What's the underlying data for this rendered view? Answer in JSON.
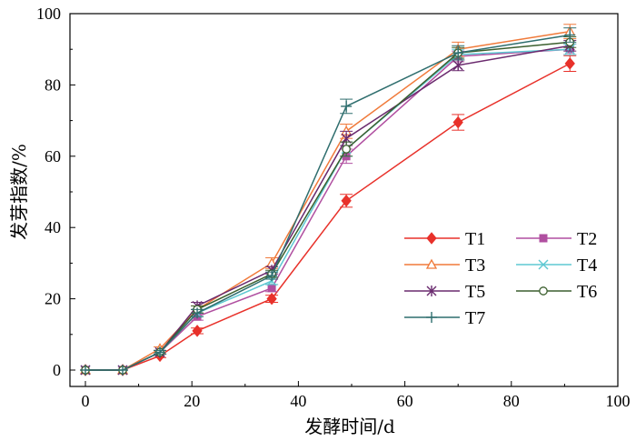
{
  "chart_data": {
    "type": "line",
    "xlabel": "发酵时间/d",
    "ylabel": "发芽指数/%",
    "xlim": [
      0,
      100
    ],
    "ylim": [
      0,
      100
    ],
    "xticks": [
      0,
      20,
      40,
      60,
      80,
      100
    ],
    "yticks": [
      0,
      20,
      40,
      60,
      80,
      100
    ],
    "xtick_labels": [
      "0",
      "20",
      "40",
      "60",
      "80",
      "100"
    ],
    "ytick_labels": [
      "0",
      "20",
      "40",
      "60",
      "80",
      "100"
    ],
    "grid": false,
    "legend_position": "center-right",
    "x": [
      0,
      7,
      14,
      21,
      35,
      49,
      70,
      91
    ],
    "series": [
      {
        "name": "T1",
        "color": "#e8312a",
        "marker": "diamond",
        "values": [
          0,
          0,
          4,
          11,
          20,
          47.5,
          69.5,
          86
        ],
        "errors": [
          0,
          0,
          0.5,
          0.8,
          1,
          1.8,
          2.2,
          2.2
        ]
      },
      {
        "name": "T2",
        "color": "#b04fa0",
        "marker": "square",
        "values": [
          0,
          0,
          5,
          15,
          23,
          60,
          88,
          90
        ],
        "errors": [
          0,
          0,
          0.5,
          1,
          1,
          2,
          1.5,
          1.5
        ]
      },
      {
        "name": "T3",
        "color": "#f07a3a",
        "marker": "triangle",
        "values": [
          0,
          0,
          6,
          17,
          30,
          67,
          90,
          95
        ],
        "errors": [
          0,
          0,
          0.5,
          1,
          1.5,
          2,
          2,
          2
        ]
      },
      {
        "name": "T4",
        "color": "#5ec8d2",
        "marker": "x",
        "values": [
          0,
          0,
          5,
          16,
          25,
          62,
          88.5,
          90
        ],
        "errors": [
          0,
          0,
          0.5,
          1,
          1,
          2,
          1.5,
          1.5
        ]
      },
      {
        "name": "T5",
        "color": "#6a2a6e",
        "marker": "asterisk",
        "values": [
          0,
          0,
          5,
          18,
          28,
          65,
          85.5,
          91
        ],
        "errors": [
          0,
          0,
          0.5,
          1,
          1,
          2,
          1.5,
          1.5
        ]
      },
      {
        "name": "T6",
        "color": "#3b5f2e",
        "marker": "circle",
        "values": [
          0,
          0,
          5,
          17,
          27,
          62,
          89,
          92
        ],
        "errors": [
          0,
          0,
          0.5,
          1,
          1,
          2,
          1.5,
          1.5
        ]
      },
      {
        "name": "T7",
        "color": "#2f6e6e",
        "marker": "plus",
        "values": [
          0,
          0,
          5,
          16,
          26.5,
          74,
          89,
          94
        ],
        "errors": [
          0,
          0,
          0.5,
          1,
          1,
          2,
          2,
          2
        ]
      }
    ]
  }
}
